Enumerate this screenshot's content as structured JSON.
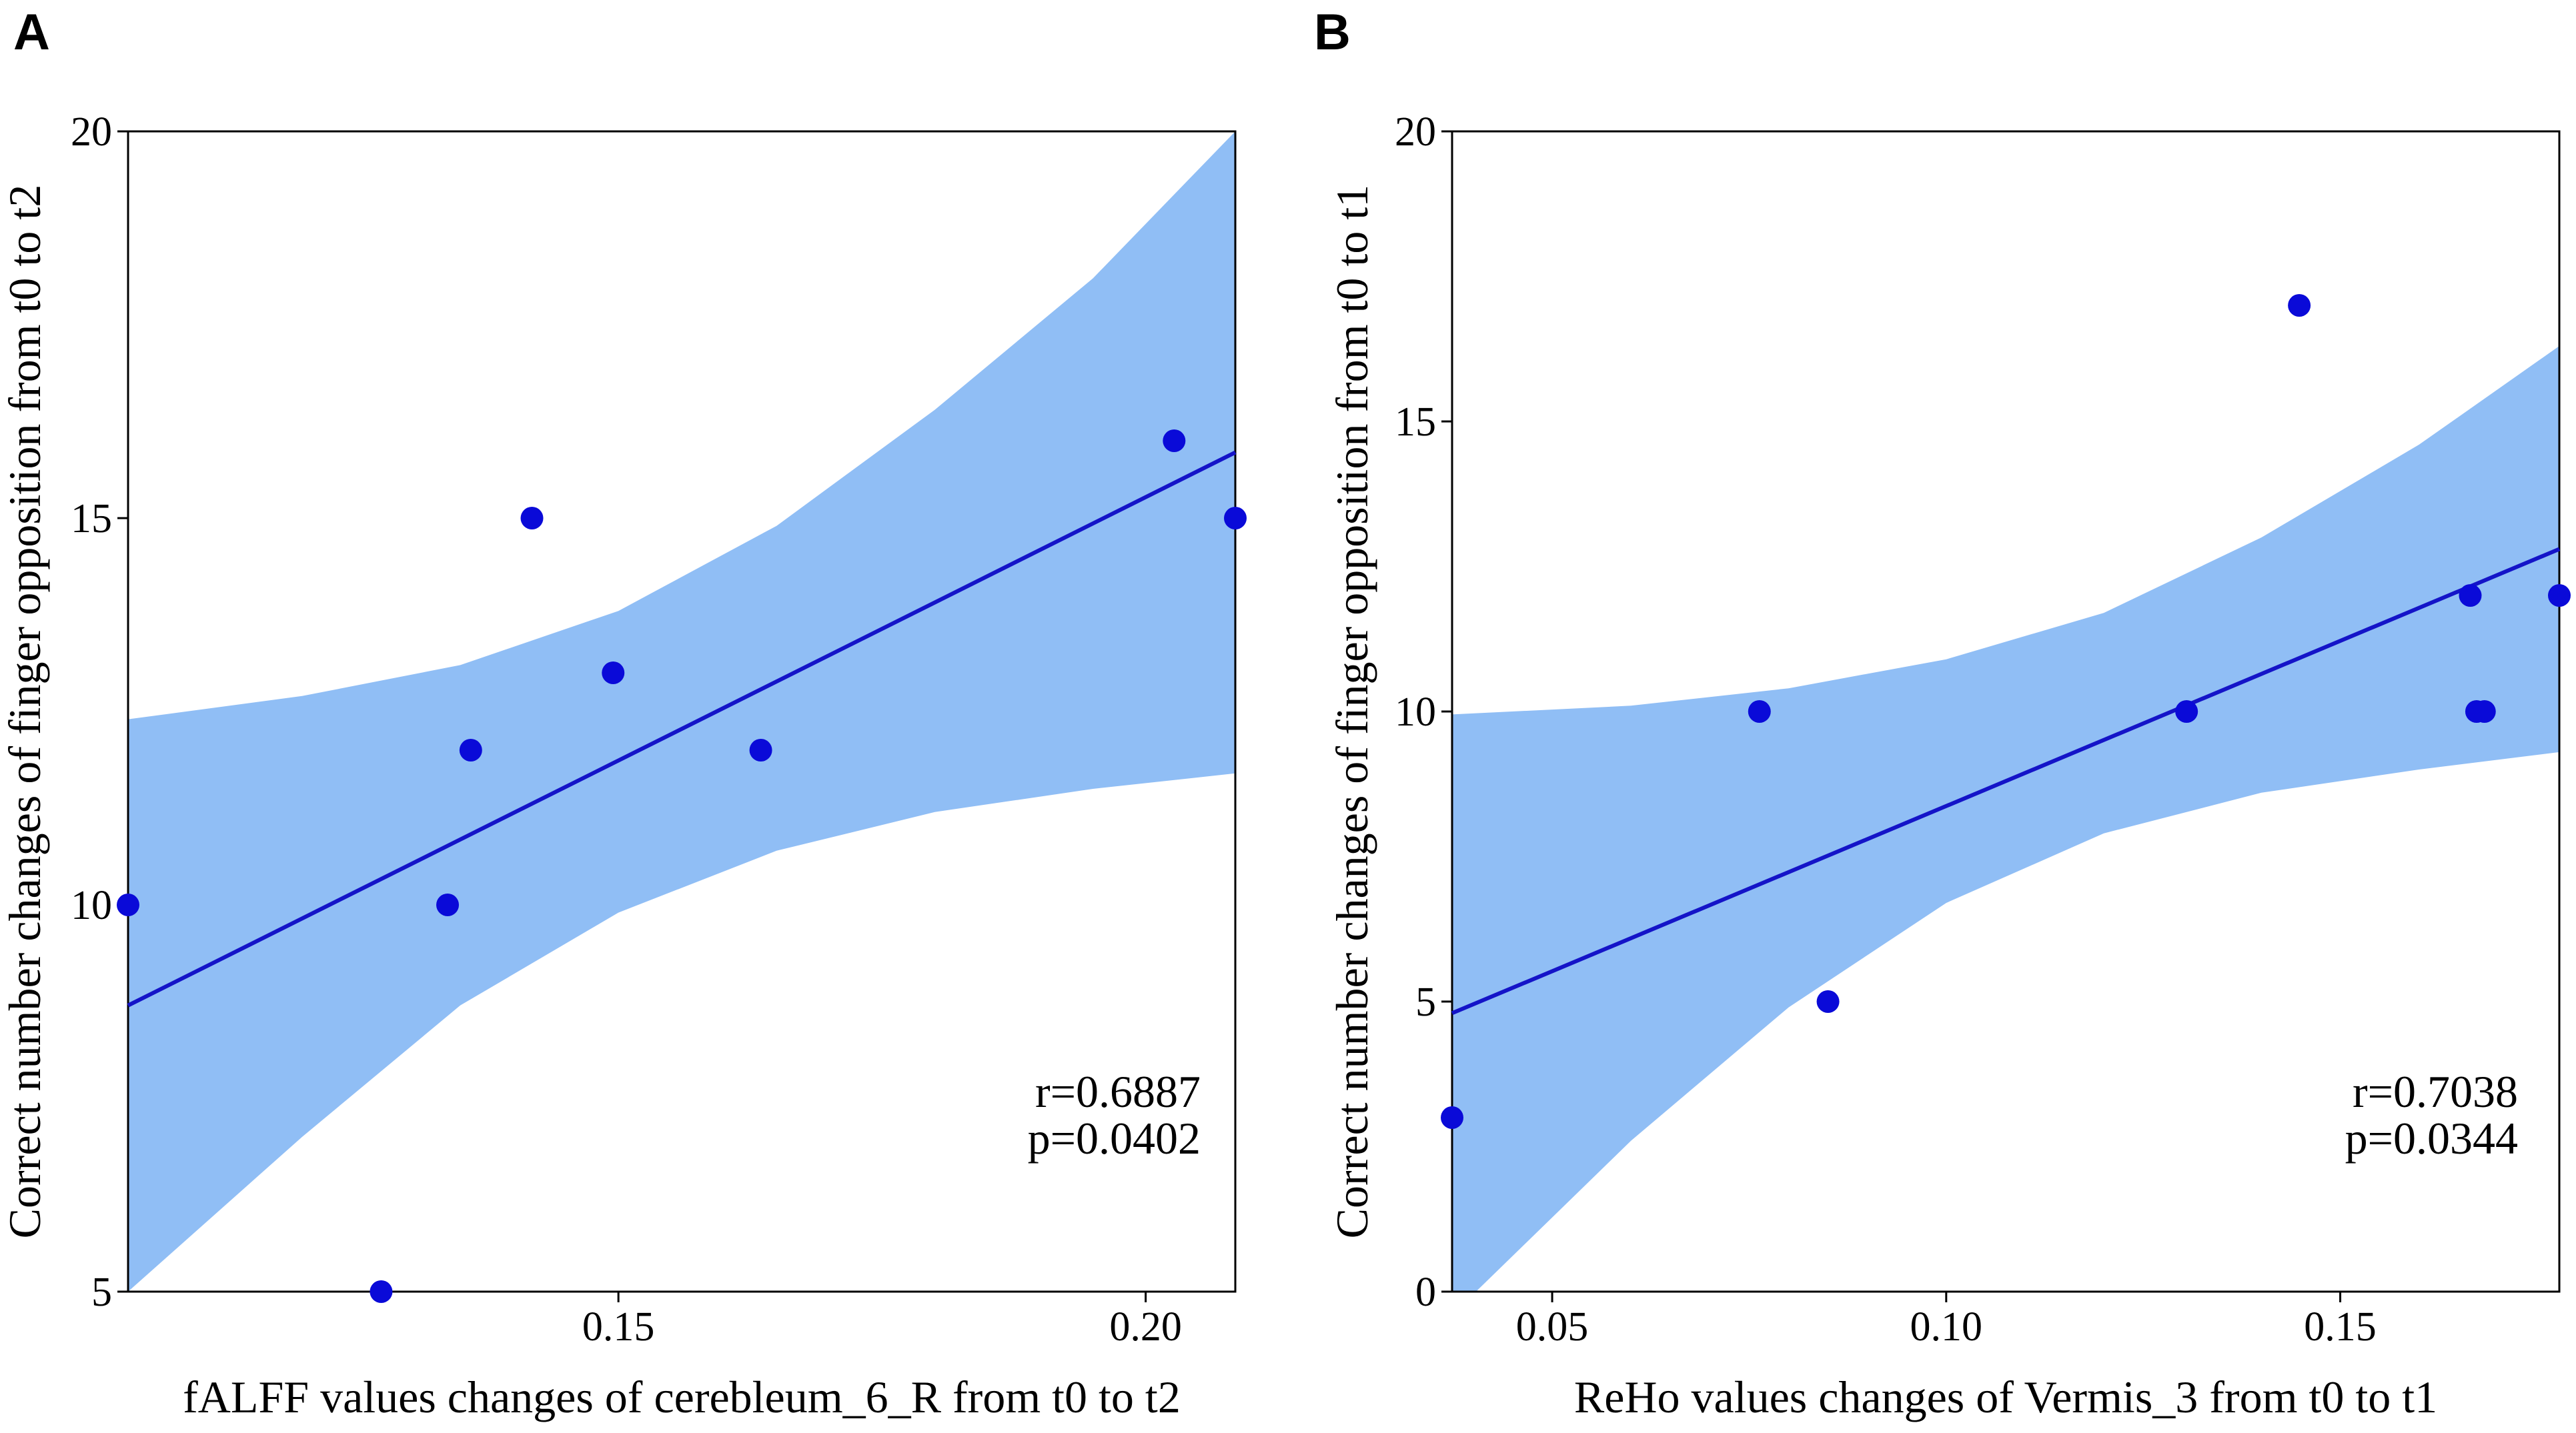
{
  "colors": {
    "point": "#0a0ad8",
    "line": "#1414c8",
    "band": "#90bef5",
    "axis": "#000000"
  },
  "chart_data": [
    {
      "panel": "A",
      "type": "scatter",
      "xlabel": "fALFF values changes of cerebleum_6_R from t0 to t2",
      "ylabel": "Correct number changes of finger opposition from t0 to t2",
      "xlim": [
        0.1035,
        0.2085
      ],
      "ylim": [
        5,
        20
      ],
      "xticks": [
        0.15,
        0.2
      ],
      "xtick_labels": [
        "0.15",
        "0.20"
      ],
      "yticks": [
        5,
        10,
        15,
        20
      ],
      "ytick_labels": [
        "5",
        "10",
        "15",
        "20"
      ],
      "points": [
        {
          "x": 0.1035,
          "y": 10
        },
        {
          "x": 0.1275,
          "y": 5
        },
        {
          "x": 0.1338,
          "y": 10
        },
        {
          "x": 0.136,
          "y": 12
        },
        {
          "x": 0.1418,
          "y": 15
        },
        {
          "x": 0.1495,
          "y": 13
        },
        {
          "x": 0.1635,
          "y": 12
        },
        {
          "x": 0.2027,
          "y": 16
        },
        {
          "x": 0.2085,
          "y": 15
        }
      ],
      "fit_line": {
        "x": [
          0.1035,
          0.2085
        ],
        "y": [
          8.7,
          15.85
        ]
      },
      "confidence_band": {
        "x": [
          0.1035,
          0.12,
          0.135,
          0.15,
          0.165,
          0.18,
          0.195,
          0.2085
        ],
        "upper": [
          12.4,
          12.7,
          13.1,
          13.8,
          14.9,
          16.4,
          18.1,
          20.0
        ],
        "lower": [
          5.0,
          7.0,
          8.7,
          9.9,
          10.7,
          11.2,
          11.5,
          11.7
        ]
      },
      "annotations": [
        "r=0.6887",
        "p=0.0402"
      ]
    },
    {
      "panel": "B",
      "type": "scatter",
      "xlabel": "ReHo values changes of Vermis_3 from t0 to t1",
      "ylabel": "Correct number changes of finger opposition from t0 to t1",
      "xlim": [
        0.0373,
        0.1778
      ],
      "ylim": [
        0,
        20
      ],
      "xticks": [
        0.05,
        0.1,
        0.15
      ],
      "xtick_labels": [
        "0.05",
        "0.10",
        "0.15"
      ],
      "yticks": [
        0,
        5,
        10,
        15,
        20
      ],
      "ytick_labels": [
        "0",
        "5",
        "10",
        "15",
        "20"
      ],
      "points": [
        {
          "x": 0.0373,
          "y": 3
        },
        {
          "x": 0.0763,
          "y": 10
        },
        {
          "x": 0.085,
          "y": 5
        },
        {
          "x": 0.1305,
          "y": 10
        },
        {
          "x": 0.1448,
          "y": 17
        },
        {
          "x": 0.1665,
          "y": 12
        },
        {
          "x": 0.1673,
          "y": 10
        },
        {
          "x": 0.1683,
          "y": 10
        },
        {
          "x": 0.1778,
          "y": 12
        }
      ],
      "fit_line": {
        "x": [
          0.0373,
          0.1778
        ],
        "y": [
          4.8,
          12.8
        ]
      },
      "confidence_band": {
        "x": [
          0.0373,
          0.06,
          0.08,
          0.1,
          0.12,
          0.14,
          0.16,
          0.1778
        ],
        "upper": [
          9.95,
          10.1,
          10.4,
          10.9,
          11.7,
          13.0,
          14.6,
          16.3
        ],
        "lower": [
          -0.4,
          2.6,
          4.9,
          6.7,
          7.9,
          8.6,
          9.0,
          9.3
        ]
      },
      "annotations": [
        "r=0.7038",
        "p=0.0344"
      ]
    }
  ]
}
